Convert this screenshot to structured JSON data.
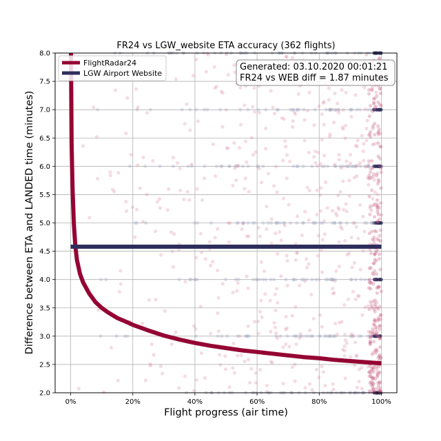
{
  "chart_data": {
    "type": "line",
    "title": "FR24 vs LGW_website ETA accuracy (362 flights)",
    "xlabel": "Flight progress (air time)",
    "ylabel": "Difference between ETA and LANDED time (minutes)",
    "xlim": [
      -5,
      105
    ],
    "ylim": [
      2.0,
      8.0
    ],
    "x_ticks": [
      0,
      20,
      40,
      60,
      80,
      100
    ],
    "x_tick_labels": [
      "0%",
      "20%",
      "40%",
      "60%",
      "80%",
      "100%"
    ],
    "y_ticks": [
      2.0,
      2.5,
      3.0,
      3.5,
      4.0,
      4.5,
      5.0,
      5.5,
      6.0,
      6.5,
      7.0,
      7.5,
      8.0
    ],
    "y_tick_labels": [
      "2.0",
      "2.5",
      "3.0",
      "3.5",
      "4.0",
      "4.5",
      "5.0",
      "5.5",
      "6.0",
      "6.5",
      "7.0",
      "7.5",
      "8.0"
    ],
    "grid": true,
    "legend_position": "top-left",
    "series": [
      {
        "name": "FlightRadar24",
        "color": "#940533",
        "x": [
          0.1,
          0.3,
          0.6,
          1,
          1.5,
          2,
          3,
          4,
          5,
          6,
          8,
          10,
          12,
          15,
          18,
          20,
          25,
          30,
          35,
          40,
          45,
          50,
          55,
          60,
          65,
          70,
          75,
          80,
          85,
          90,
          95,
          100
        ],
        "y": [
          8.0,
          6.4,
          5.6,
          5.0,
          4.6,
          4.35,
          4.1,
          3.95,
          3.85,
          3.75,
          3.6,
          3.5,
          3.42,
          3.32,
          3.25,
          3.2,
          3.1,
          3.01,
          2.94,
          2.88,
          2.83,
          2.79,
          2.75,
          2.72,
          2.69,
          2.66,
          2.63,
          2.61,
          2.58,
          2.56,
          2.54,
          2.52
        ]
      },
      {
        "name": "LGW Airport Website",
        "color": "#2e2e5c",
        "x": [
          0,
          100
        ],
        "y": [
          4.58,
          4.58
        ]
      }
    ],
    "scatter_colors": {
      "fr24": "#d98aa3",
      "web": "#a9abc4"
    },
    "annotation": {
      "line1": "Generated: 03.10.2020 00:01:21",
      "line2": "FR24 vs WEB diff = 1.87 minutes"
    }
  }
}
